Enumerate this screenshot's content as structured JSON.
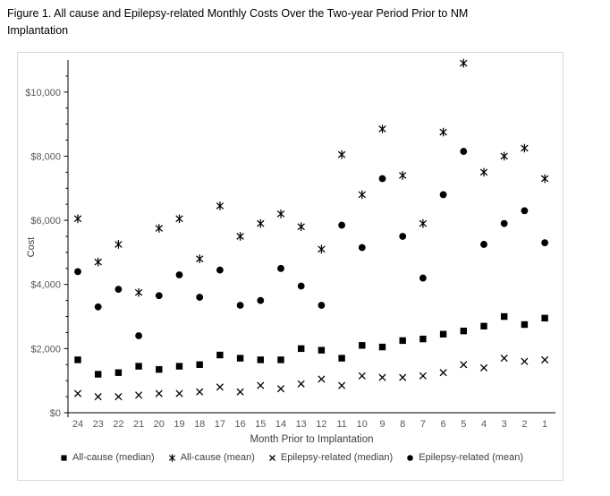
{
  "figure": {
    "title": "Figure 1. All cause and Epilepsy-related Monthly Costs Over the Two-year Period Prior to NM Implantation"
  },
  "chart_data": {
    "type": "scatter",
    "title": "Figure 1. All cause and Epilepsy-related Monthly Costs Over the Two-year Period Prior to NM Implantation",
    "xlabel": "Month Prior to Implantation",
    "ylabel": "Cost",
    "x_order": "descending",
    "categories": [
      24,
      23,
      22,
      21,
      20,
      19,
      18,
      17,
      16,
      15,
      14,
      13,
      12,
      11,
      10,
      9,
      8,
      7,
      6,
      5,
      4,
      3,
      2,
      1
    ],
    "ylim": [
      0,
      11000
    ],
    "yticks": [
      0,
      2000,
      4000,
      6000,
      8000,
      10000
    ],
    "ytick_labels": [
      "$0",
      "$2,000",
      "$4,000",
      "$6,000",
      "$8,000",
      "$10,000"
    ],
    "minor_ytick_step": 500,
    "grid": false,
    "legend_position": "bottom",
    "series": [
      {
        "name": "All-cause (median)",
        "marker": "square",
        "values": [
          1650,
          1200,
          1250,
          1450,
          1350,
          1450,
          1500,
          1800,
          1700,
          1650,
          1650,
          2000,
          1950,
          1700,
          2100,
          2050,
          2250,
          2300,
          2450,
          2550,
          2700,
          3000,
          2750,
          2950
        ]
      },
      {
        "name": "All-cause (mean)",
        "marker": "asterisk",
        "values": [
          6050,
          4700,
          5250,
          3750,
          5750,
          6050,
          4800,
          6450,
          5500,
          5900,
          6200,
          5800,
          5100,
          8050,
          6800,
          8850,
          7400,
          5900,
          8750,
          10900,
          7500,
          8000,
          8250,
          7300
        ]
      },
      {
        "name": "Epilepsy-related (median)",
        "marker": "x",
        "values": [
          600,
          500,
          500,
          550,
          600,
          600,
          650,
          800,
          650,
          850,
          750,
          900,
          1050,
          850,
          1150,
          1100,
          1100,
          1150,
          1250,
          1500,
          1400,
          1700,
          1600,
          1650
        ]
      },
      {
        "name": "Epilepsy-related (mean)",
        "marker": "circle",
        "values": [
          4400,
          3300,
          3850,
          2400,
          3650,
          4300,
          3600,
          4450,
          3350,
          3500,
          4500,
          3950,
          3350,
          5850,
          5150,
          7300,
          5500,
          4200,
          6800,
          8150,
          5250,
          5900,
          6300,
          5300
        ]
      }
    ],
    "colors": {
      "marker": "#000000",
      "axis": "#000000",
      "tick_label": "#595959",
      "axis_title": "#404040",
      "chart_border": "#d9d9d9",
      "background": "#ffffff"
    }
  }
}
